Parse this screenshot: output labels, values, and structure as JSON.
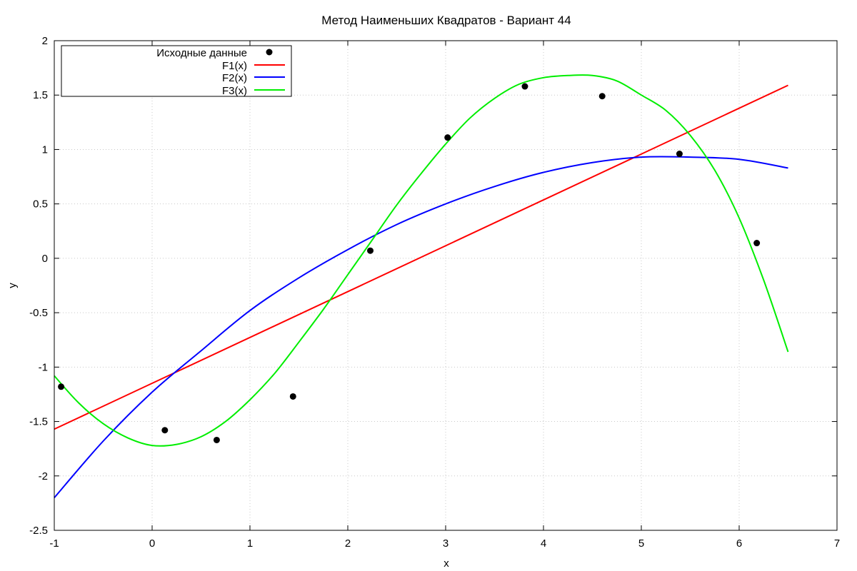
{
  "chart_data": {
    "type": "line",
    "title": "Метод Наименьших Квадратов - Вариант 44",
    "xlabel": "x",
    "ylabel": "y",
    "xlim": [
      -1,
      7
    ],
    "ylim": [
      -2.5,
      2
    ],
    "xticks": [
      -1,
      0,
      1,
      2,
      3,
      4,
      5,
      6,
      7
    ],
    "xtick_labels": [
      "-1",
      "0",
      "1",
      "2",
      "3",
      "4",
      "5",
      "6",
      "7"
    ],
    "yticks": [
      -2.5,
      -2,
      -1.5,
      -1,
      -0.5,
      0,
      0.5,
      1,
      1.5,
      2
    ],
    "ytick_labels": [
      "-2.5",
      "-2",
      "-1.5",
      "-1",
      "-0.5",
      "0",
      "0.5",
      "1",
      "1.5",
      "2"
    ],
    "grid": true,
    "legend_position": "top-left",
    "points": {
      "name": "Исходные данные",
      "color": "#000000",
      "x": [
        -0.93,
        0.13,
        0.66,
        1.44,
        2.23,
        3.02,
        3.81,
        4.6,
        5.39,
        6.18
      ],
      "y": [
        -1.18,
        -1.58,
        -1.67,
        -1.27,
        0.07,
        1.11,
        1.58,
        1.49,
        0.96,
        0.14
      ]
    },
    "series": [
      {
        "name": "F1(x)",
        "color": "#ff0000",
        "x": [
          -1,
          6.5
        ],
        "y": [
          -1.57,
          1.59
        ]
      },
      {
        "name": "F2(x)",
        "color": "#0000ff",
        "x": [
          -1,
          -0.5,
          0,
          0.5,
          1,
          1.5,
          2,
          2.5,
          3,
          3.5,
          4,
          4.5,
          5,
          5.5,
          6,
          6.5
        ],
        "y": [
          -2.2,
          -1.68,
          -1.23,
          -0.85,
          -0.48,
          -0.18,
          0.08,
          0.31,
          0.5,
          0.66,
          0.79,
          0.88,
          0.93,
          0.93,
          0.91,
          0.83
        ]
      },
      {
        "name": "F3(x)",
        "color": "#00ee00",
        "x": [
          -1,
          -0.75,
          -0.5,
          -0.25,
          0,
          0.25,
          0.5,
          0.75,
          1,
          1.25,
          1.5,
          1.75,
          2,
          2.25,
          2.5,
          2.75,
          3,
          3.25,
          3.5,
          3.75,
          4,
          4.25,
          4.5,
          4.75,
          5,
          5.25,
          5.5,
          5.75,
          6,
          6.25,
          6.5
        ],
        "y": [
          -1.08,
          -1.33,
          -1.52,
          -1.65,
          -1.72,
          -1.71,
          -1.64,
          -1.5,
          -1.3,
          -1.06,
          -0.77,
          -0.47,
          -0.15,
          0.17,
          0.49,
          0.78,
          1.05,
          1.29,
          1.47,
          1.6,
          1.66,
          1.68,
          1.68,
          1.63,
          1.5,
          1.36,
          1.13,
          0.81,
          0.37,
          -0.2,
          -0.86
        ]
      }
    ]
  }
}
